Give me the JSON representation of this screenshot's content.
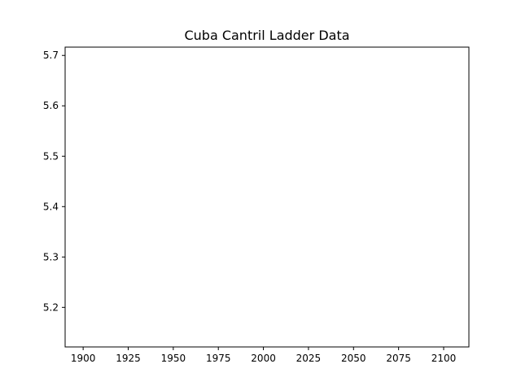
{
  "chart_data": {
    "type": "line",
    "title": "Cuba Cantril Ladder Data",
    "xlabel": "",
    "ylabel": "",
    "xlim": [
      1890,
      2114
    ],
    "ylim": [
      5.1215,
      5.7165
    ],
    "x_ticks": [
      1900,
      1925,
      1950,
      1975,
      2000,
      2025,
      2050,
      2075,
      2100
    ],
    "y_ticks": [
      5.2,
      5.3,
      5.4,
      5.5,
      5.6,
      5.7
    ],
    "y_tick_labels": [
      "5.2",
      "5.3",
      "5.4",
      "5.5",
      "5.6",
      "5.7"
    ],
    "series": [],
    "grid": false,
    "legend": "none"
  },
  "colors": {
    "axes": "#000000",
    "background": "#ffffff"
  }
}
